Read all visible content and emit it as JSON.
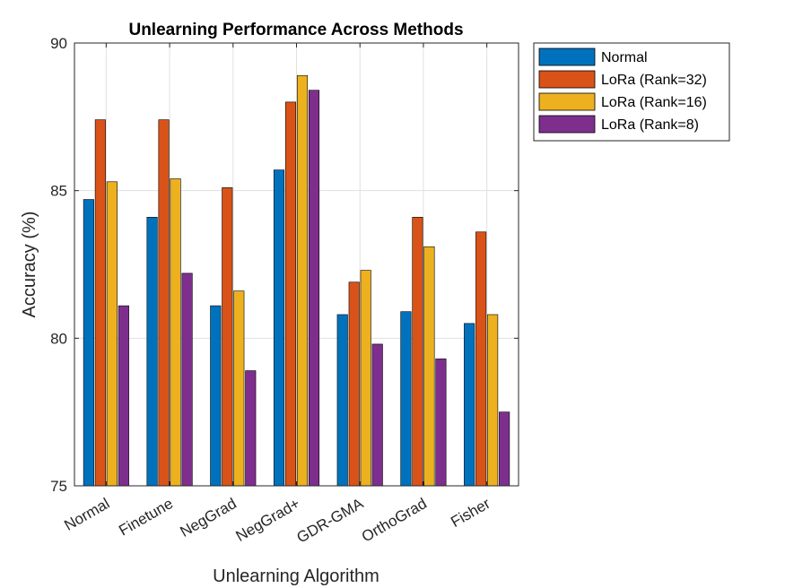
{
  "chart_data": {
    "type": "bar",
    "title": "Unlearning Performance Across Methods",
    "xlabel": "Unlearning Algorithm",
    "ylabel": "Accuracy (%)",
    "ylim": [
      75,
      90
    ],
    "yticks": [
      75,
      80,
      85,
      90
    ],
    "grid": true,
    "legend_position": "outside-top-right",
    "categories": [
      "Normal",
      "Finetune",
      "NegGrad",
      "NegGrad+",
      "GDR-GMA",
      "OrthoGrad",
      "Fisher"
    ],
    "series": [
      {
        "name": "Normal",
        "color": "#0072BD",
        "values": [
          84.7,
          84.1,
          81.1,
          85.7,
          80.8,
          80.9,
          80.5
        ]
      },
      {
        "name": "LoRa (Rank=32)",
        "color": "#D95319",
        "values": [
          87.4,
          87.4,
          85.1,
          88.0,
          81.9,
          84.1,
          83.6
        ]
      },
      {
        "name": "LoRa (Rank=16)",
        "color": "#EDB120",
        "values": [
          85.3,
          85.4,
          81.6,
          88.9,
          82.3,
          83.1,
          80.8
        ]
      },
      {
        "name": "LoRa (Rank=8)",
        "color": "#7E2F8E",
        "values": [
          81.1,
          82.2,
          78.9,
          88.4,
          79.8,
          79.3,
          77.5
        ]
      }
    ]
  }
}
